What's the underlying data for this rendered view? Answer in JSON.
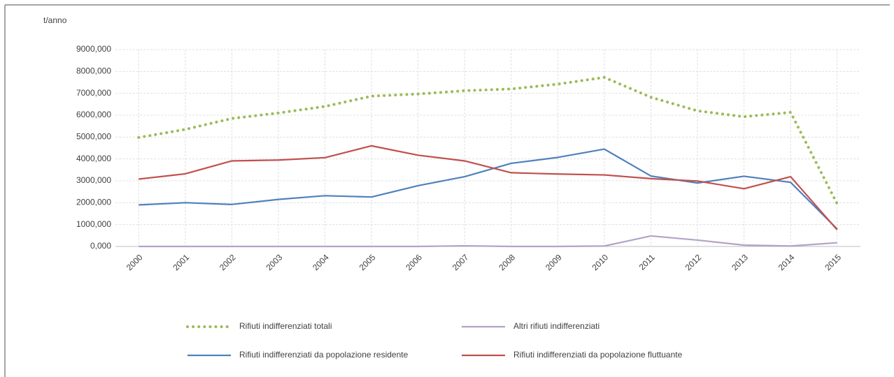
{
  "chart_data": {
    "type": "line",
    "y_unit_label": "t/anno",
    "categories": [
      "2000",
      "2001",
      "2002",
      "2003",
      "2004",
      "2005",
      "2006",
      "2007",
      "2008",
      "2009",
      "2010",
      "2011",
      "2012",
      "2013",
      "2014",
      "2015"
    ],
    "series": [
      {
        "name": "Rifiuti indifferenziati totali",
        "color": "#9bbb59",
        "style": "dotted",
        "values": [
          4980,
          5350,
          5850,
          6100,
          6400,
          6870,
          6970,
          7120,
          7200,
          7420,
          7730,
          6820,
          6200,
          5930,
          6130,
          1950
        ]
      },
      {
        "name": "Altri rifiuti indifferenziati",
        "color": "#b3a2c7",
        "style": "solid",
        "values": [
          0,
          0,
          0,
          0,
          0,
          0,
          0,
          30,
          0,
          0,
          20,
          480,
          290,
          60,
          20,
          170
        ]
      },
      {
        "name": "Rifiuti indifferenziati da popolazione residente",
        "color": "#4f81bd",
        "style": "solid",
        "values": [
          1900,
          2000,
          1920,
          2150,
          2320,
          2260,
          2780,
          3190,
          3800,
          4070,
          4450,
          3220,
          2900,
          3210,
          2930,
          800
        ]
      },
      {
        "name": "Rifiuti indifferenziati da popolazione fluttuante",
        "color": "#c0504d",
        "style": "solid",
        "values": [
          3080,
          3320,
          3910,
          3950,
          4060,
          4600,
          4170,
          3910,
          3370,
          3310,
          3270,
          3100,
          2990,
          2640,
          3190,
          760
        ]
      }
    ],
    "ylim": [
      0,
      9000
    ],
    "yticks": [
      {
        "value": 0,
        "label": "0,000"
      },
      {
        "value": 1000,
        "label": "1000,000"
      },
      {
        "value": 2000,
        "label": "2000,000"
      },
      {
        "value": 3000,
        "label": "3000,000"
      },
      {
        "value": 4000,
        "label": "4000,000"
      },
      {
        "value": 5000,
        "label": "5000,000"
      },
      {
        "value": 6000,
        "label": "6000,000"
      },
      {
        "value": 7000,
        "label": "7000,000"
      },
      {
        "value": 8000,
        "label": "8000,000"
      },
      {
        "value": 9000,
        "label": "9000,000"
      }
    ],
    "grid": true,
    "legend": "bottom"
  }
}
